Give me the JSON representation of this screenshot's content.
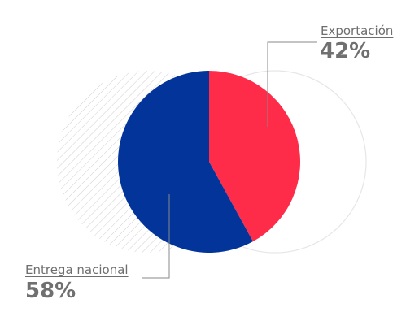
{
  "chart_data": {
    "type": "pie",
    "categories": [
      "Exportación",
      "Entrega nacional"
    ],
    "values": [
      42,
      58
    ],
    "labels": [
      "42%",
      "58%"
    ],
    "colors": [
      "#fe2c49",
      "#03349a"
    ]
  }
}
